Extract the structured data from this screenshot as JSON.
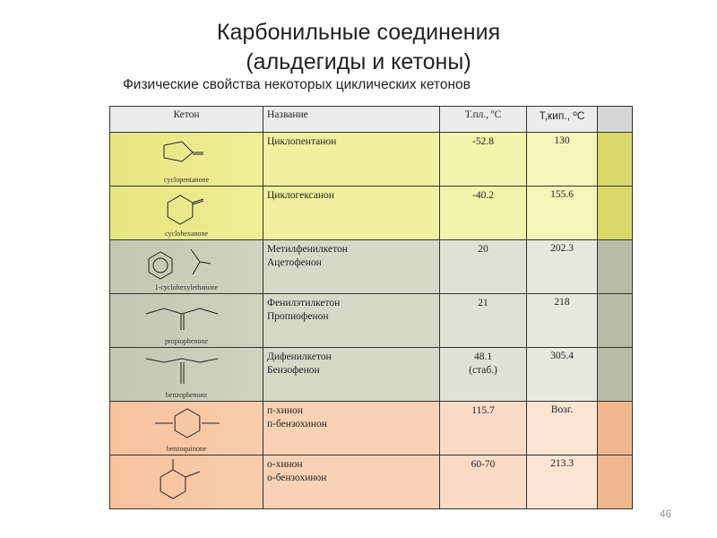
{
  "header": {
    "title_line1": "Карбонильные соединения",
    "title_line2": "(альдегиды и кетоны)",
    "subtitle": "Физические свойства некоторых циклических кетонов"
  },
  "table": {
    "columns": [
      "Кетон",
      "Название",
      "Т.пл., ºС",
      "Т,кип., ºС"
    ],
    "rows": [
      {
        "structure_label": "cyclopentanone",
        "names": [
          "Циклопентанон"
        ],
        "mp": [
          "-52.8"
        ],
        "bp": "130"
      },
      {
        "structure_label": "cyclohexanone",
        "names": [
          "Циклогексанон"
        ],
        "mp": [
          "-40.2"
        ],
        "bp": "155.6"
      },
      {
        "structure_label": "1-cyclohexylethanone",
        "names": [
          "Метилфенилкетон",
          "Ацетофенон"
        ],
        "mp": [
          "20"
        ],
        "bp": "202.3"
      },
      {
        "structure_label": "propiophenone",
        "names": [
          "Фенилэтилкетон",
          "Пропиофенон"
        ],
        "mp": [
          "21"
        ],
        "bp": "218"
      },
      {
        "structure_label": "benzophenone",
        "names": [
          "Дифенилкетон",
          "Бензофенон"
        ],
        "mp": [
          "48.1",
          "(стаб.)"
        ],
        "bp": "305.4"
      },
      {
        "structure_label": "benzoquinone",
        "names": [
          "п-хинон",
          "п-бензохинон"
        ],
        "mp": [
          "115.7"
        ],
        "bp": "Возг."
      },
      {
        "structure_label": "",
        "names": [
          "о-хинон",
          "о-бензохинон"
        ],
        "mp": [
          "60-70"
        ],
        "bp": "213.3"
      }
    ]
  },
  "page_number": "46"
}
